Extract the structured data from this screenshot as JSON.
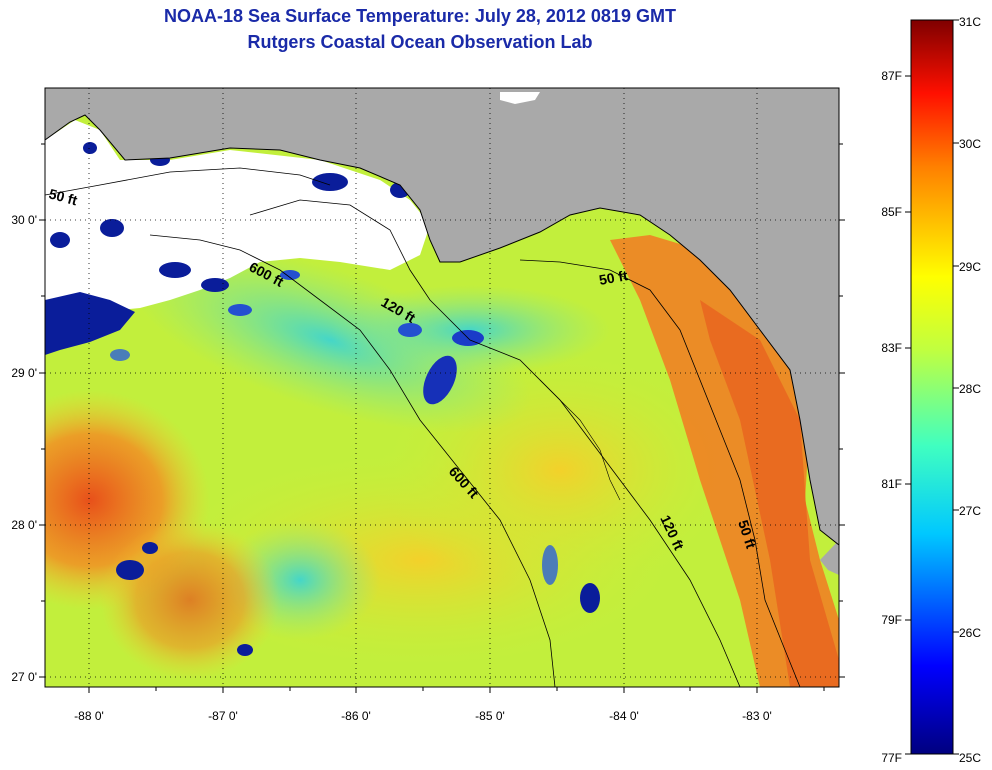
{
  "header": {
    "title": "NOAA-18 Sea Surface Temperature:  July 28, 2012 0819 GMT",
    "subtitle": "Rutgers Coastal Ocean Observation Lab"
  },
  "map": {
    "lon_labels": [
      "-88 0'",
      "-87 0'",
      "-86 0'",
      "-85 0'",
      "-84 0'",
      "-83 0'"
    ],
    "lat_labels": [
      "30 0'",
      "29 0'",
      "28 0'",
      "27 0'"
    ],
    "contour_labels": [
      "50 ft",
      "600 ft",
      "120 ft",
      "50 ft",
      "600 ft",
      "120 ft",
      "50 ft"
    ],
    "colors": {
      "land": "#a9a9a9",
      "cloud": "#ffffff",
      "warm": "#f06a1e",
      "mid": "#b9ef35",
      "cool": "#4cdcd2",
      "cold": "#0a1d9a"
    }
  },
  "colorbar": {
    "fahrenheit": [
      "87F",
      "85F",
      "83F",
      "81F",
      "79F",
      "77F"
    ],
    "celsius": [
      "31C",
      "30C",
      "29C",
      "28C",
      "27C",
      "26C",
      "25C"
    ]
  }
}
